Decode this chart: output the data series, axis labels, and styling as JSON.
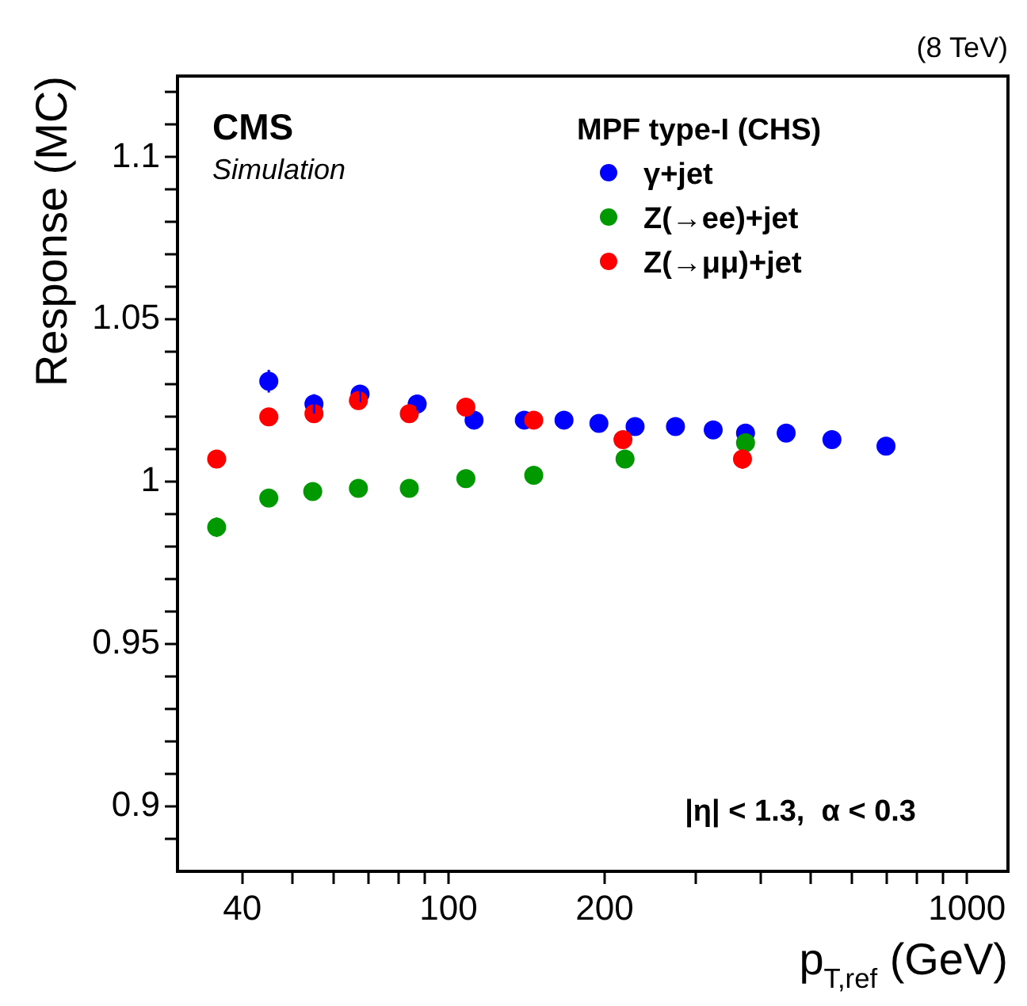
{
  "chart_data": {
    "type": "scatter",
    "xlabel": "p$_{T,ref}$ (GeV)",
    "ylabel": "Response (MC)",
    "legend_title": "MPF type-I (CHS)",
    "annotations": [
      "CMS",
      "Simulation",
      "(8 TeV)",
      "|η| < 1.3,  α < 0.3"
    ],
    "log": "x",
    "grid": false,
    "legend": "top right",
    "marker": "circle",
    "xlim": [
      30,
      1200
    ],
    "ylim": [
      0.88,
      1.125
    ],
    "xticks": [
      40,
      {
        "value": 50,
        "label": null
      },
      {
        "value": 60,
        "label": null
      },
      {
        "value": 70,
        "label": null
      },
      {
        "value": 80,
        "label": null
      },
      {
        "value": 90,
        "label": null
      },
      100,
      200,
      {
        "value": 300,
        "label": null
      },
      {
        "value": 400,
        "label": null
      },
      {
        "value": 500,
        "label": null
      },
      {
        "value": 600,
        "label": null
      },
      {
        "value": 700,
        "label": null
      },
      {
        "value": 800,
        "label": null
      },
      {
        "value": 900,
        "label": null
      },
      1000
    ],
    "yticks": [
      {
        "value": 0.89,
        "label": null
      },
      0.9,
      {
        "value": 0.91,
        "label": null
      },
      {
        "value": 0.92,
        "label": null
      },
      {
        "value": 0.93,
        "label": null
      },
      {
        "value": 0.94,
        "label": null
      },
      0.95,
      {
        "value": 0.96,
        "label": null
      },
      {
        "value": 0.97,
        "label": null
      },
      {
        "value": 0.98,
        "label": null
      },
      {
        "value": 0.99,
        "label": null
      },
      1,
      {
        "value": 1.01,
        "label": null
      },
      {
        "value": 1.02,
        "label": null
      },
      {
        "value": 1.03,
        "label": null
      },
      {
        "value": 1.04,
        "label": null
      },
      1.05,
      {
        "value": 1.06,
        "label": null
      },
      {
        "value": 1.07,
        "label": null
      },
      {
        "value": 1.08,
        "label": null
      },
      {
        "value": 1.09,
        "label": null
      },
      1.1,
      {
        "value": 1.11,
        "label": null
      },
      {
        "value": 1.12,
        "label": null
      }
    ],
    "series": [
      {
        "name": "γ+jet",
        "color": "#0000ff",
        "x": [
          45,
          55,
          67.5,
          87,
          112,
          140,
          167,
          195,
          229,
          274,
          324,
          374,
          448,
          549,
          698
        ],
        "values": [
          1.031,
          1.024,
          1.027,
          1.024,
          1.019,
          1.019,
          1.019,
          1.018,
          1.017,
          1.017,
          1.016,
          1.015,
          1.015,
          1.013,
          1.011
        ],
        "errors": [
          0.0035,
          0.003,
          0.0025,
          0.002,
          0.002,
          null,
          null,
          null,
          null,
          null,
          null,
          null,
          null,
          null,
          null
        ]
      },
      {
        "name": "Z(→ee)+jet",
        "color": "#009900",
        "x": [
          35.7,
          45,
          54.7,
          67,
          84,
          108,
          146,
          219,
          374
        ],
        "values": [
          0.986,
          0.995,
          0.997,
          0.998,
          0.998,
          1.001,
          1.002,
          1.007,
          1.012
        ],
        "errors": [
          0.003,
          null,
          null,
          null,
          null,
          null,
          null,
          null,
          0.002
        ]
      },
      {
        "name": "Z(→μμ)+jet",
        "color": "#ff0000",
        "x": [
          35.7,
          45,
          55,
          67,
          84,
          108,
          146,
          217,
          369
        ],
        "values": [
          1.007,
          1.02,
          1.021,
          1.025,
          1.021,
          1.023,
          1.019,
          1.013,
          1.007
        ],
        "errors": [
          0.002,
          null,
          null,
          0.002,
          null,
          null,
          null,
          null,
          0.003
        ]
      }
    ]
  }
}
